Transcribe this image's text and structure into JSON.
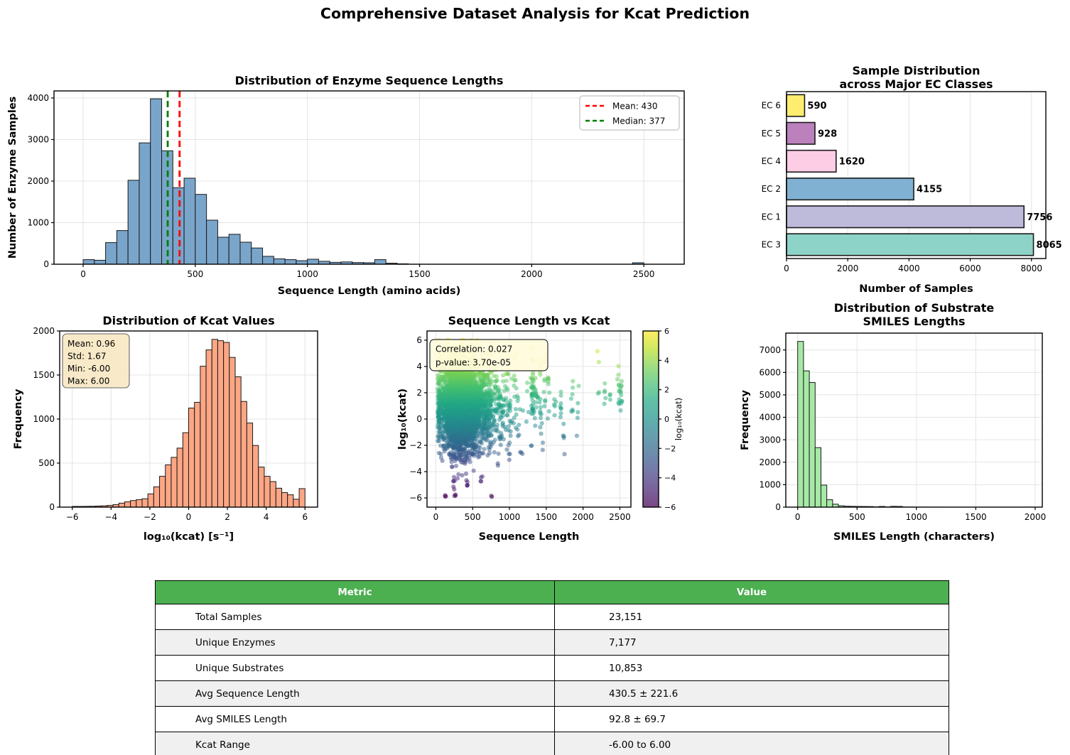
{
  "figure_title": "Comprehensive Dataset Analysis for Kcat Prediction",
  "chart_data": [
    {
      "id": "seq_length_hist",
      "type": "bar",
      "title": "Distribution of Enzyme Sequence Lengths",
      "xlabel": "Sequence Length (amino acids)",
      "ylabel": "Number of Enzyme Samples",
      "bar_color": "#7aa5cb",
      "bin_start": 0,
      "bin_width": 50,
      "values": [
        110,
        95,
        520,
        810,
        2020,
        2920,
        3980,
        2730,
        1840,
        2070,
        1680,
        1060,
        650,
        720,
        530,
        390,
        190,
        130,
        110,
        85,
        120,
        70,
        45,
        55,
        40,
        35,
        110,
        25,
        10,
        0,
        0,
        0,
        0,
        0,
        0,
        0,
        0,
        0,
        0,
        0,
        0,
        0,
        0,
        0,
        0,
        0,
        0,
        0,
        0,
        35
      ],
      "xlim": [
        -130,
        2680
      ],
      "ylim": [
        0,
        4170
      ],
      "xticks": [
        0,
        500,
        1000,
        1500,
        2000,
        2500
      ],
      "yticks": [
        0,
        1000,
        2000,
        3000,
        4000
      ],
      "grid": true,
      "mean_line": {
        "x": 430,
        "color": "#ff0000",
        "label": "Mean: 430"
      },
      "median_line": {
        "x": 377,
        "color": "#008000",
        "label": "Median: 377"
      },
      "legend_position": "top-right"
    },
    {
      "id": "ec_classes",
      "type": "barh",
      "title_lines": [
        "Sample Distribution",
        "across Major EC Classes"
      ],
      "xlabel": "Number of Samples",
      "categories": [
        "EC 6",
        "EC 5",
        "EC 4",
        "EC 2",
        "EC 1",
        "EC 3"
      ],
      "values": [
        590,
        928,
        1620,
        4155,
        7756,
        8065
      ],
      "colors": [
        "#ffed6f",
        "#bc80bd",
        "#fccde5",
        "#80b1d3",
        "#bebada",
        "#8dd3c7"
      ],
      "xlim": [
        0,
        8470
      ],
      "xticks": [
        0,
        2000,
        4000,
        6000,
        8000
      ],
      "grid": true
    },
    {
      "id": "kcat_hist",
      "type": "bar",
      "title": "Distribution of Kcat Values",
      "xlabel": "log₁₀(kcat) [s⁻¹]",
      "ylabel": "Frequency",
      "bar_color": "#fca684",
      "bin_start": -6,
      "bin_width": 0.3,
      "values": [
        8,
        8,
        9,
        10,
        12,
        15,
        20,
        28,
        45,
        60,
        75,
        85,
        95,
        150,
        230,
        350,
        480,
        565,
        670,
        845,
        1125,
        1190,
        1600,
        1785,
        1905,
        1890,
        1870,
        1700,
        1480,
        1200,
        955,
        700,
        455,
        350,
        290,
        215,
        165,
        140,
        90,
        210
      ],
      "xlim": [
        -6.65,
        6.65
      ],
      "ylim": [
        0,
        2000
      ],
      "xticks": [
        -6,
        -4,
        -2,
        0,
        2,
        4,
        6
      ],
      "yticks": [
        0,
        500,
        1000,
        1500,
        2000
      ],
      "grid": true,
      "stats_box": {
        "lines": [
          "Mean: 0.96",
          "Std: 1.67",
          "Min: -6.00",
          "Max: 6.00"
        ],
        "bg": "#f7e8c3"
      }
    },
    {
      "id": "scatter_seq_vs_kcat",
      "type": "scatter",
      "title": "Sequence Length vs Kcat",
      "xlabel": "Sequence Length",
      "ylabel": "log₁₀(kcat)",
      "annotation": {
        "lines": [
          "Correlation: 0.027",
          "p-value: 3.70e-05"
        ],
        "bg": "#fffbdc"
      },
      "xlim": [
        -120,
        2650
      ],
      "ylim": [
        -6.7,
        6.7
      ],
      "xticks": [
        0,
        500,
        1000,
        1500,
        2000,
        2500
      ],
      "yticks": [
        -6,
        -4,
        -2,
        0,
        2,
        4,
        6
      ],
      "grid": true,
      "colormap": "viridis",
      "point_alpha": 0.5,
      "colorbar": {
        "label": "log₁₀(kcat)",
        "ticks": [
          6,
          4,
          2,
          0,
          -2,
          -4,
          -6
        ],
        "vmin": -6,
        "vmax": 6
      },
      "representation": {
        "note": "dense cloud of ~23k points, color = log10(kcat), procedurally approximated",
        "seed": 42,
        "n_core": 3800,
        "x_offset": 55,
        "x_log_mu": 5.8,
        "x_log_sigma": 0.48,
        "x_low_frac": 0.12,
        "y_mean": 0.96,
        "y_std": 1.67,
        "y_clip": [
          -6,
          6
        ],
        "clusters": [
          [
            1310,
            30,
            0.3,
            3.6
          ],
          [
            1320,
            6,
            4.2,
            6.0
          ],
          [
            1360,
            12,
            0.8,
            3.2
          ],
          [
            1420,
            16,
            -1.2,
            5.0
          ],
          [
            1480,
            10,
            0.8,
            5.2
          ],
          [
            1530,
            8,
            -0.2,
            4.6
          ],
          [
            1620,
            5,
            0.2,
            2.2
          ],
          [
            1705,
            7,
            0.4,
            2.6
          ],
          [
            1735,
            5,
            -2.8,
            2.0
          ],
          [
            1855,
            7,
            0.5,
            3.0
          ],
          [
            1925,
            5,
            -1.6,
            2.6
          ],
          [
            2210,
            4,
            0.8,
            5.6
          ],
          [
            2300,
            5,
            0.9,
            4.6
          ],
          [
            2360,
            3,
            0.9,
            2.1
          ],
          [
            2480,
            9,
            0.4,
            4.2
          ],
          [
            2515,
            11,
            0.5,
            3.2
          ],
          [
            130,
            3,
            -6.05,
            -5.7
          ],
          [
            260,
            3,
            -6.0,
            -5.5
          ],
          [
            750,
            2,
            -6.05,
            -5.8
          ],
          [
            240,
            6,
            -5.4,
            -4.4
          ],
          [
            430,
            5,
            -5.3,
            -4.4
          ],
          [
            620,
            4,
            -5.1,
            -4.3
          ],
          [
            850,
            2,
            -3.8,
            -3.2
          ],
          [
            1000,
            3,
            -3.3,
            -2.6
          ],
          [
            1150,
            3,
            -2.7,
            -2.2
          ],
          [
            1300,
            2,
            -2.5,
            -2.0
          ],
          [
            1450,
            2,
            -2.4,
            -1.8
          ],
          [
            160,
            5,
            5.6,
            6.05
          ],
          [
            350,
            6,
            5.6,
            6.05
          ],
          [
            560,
            4,
            5.6,
            6.05
          ]
        ]
      }
    },
    {
      "id": "smiles_hist",
      "type": "bar",
      "title_lines": [
        "Distribution of Substrate",
        "SMILES Lengths"
      ],
      "xlabel": "SMILES Length (characters)",
      "ylabel": "Frequency",
      "bar_color": "#a6e9a6",
      "bin_start": 0,
      "bin_width": 49,
      "values": [
        7380,
        6070,
        5550,
        2650,
        980,
        330,
        130,
        60,
        40,
        35,
        30,
        28,
        25,
        12,
        30,
        10,
        35,
        30,
        5,
        3,
        2,
        2,
        1,
        1,
        1,
        0,
        0,
        0,
        0,
        0,
        0,
        0,
        0,
        0,
        0,
        0,
        0,
        0,
        0,
        2
      ],
      "xlim": [
        -100,
        2060
      ],
      "ylim": [
        0,
        7750
      ],
      "xticks": [
        0,
        500,
        1000,
        1500,
        2000
      ],
      "yticks": [
        0,
        1000,
        2000,
        3000,
        4000,
        5000,
        6000,
        7000
      ],
      "grid": true
    }
  ],
  "table": {
    "headers": [
      "Metric",
      "Value"
    ],
    "rows": [
      [
        "Total Samples",
        "23,151"
      ],
      [
        "Unique Enzymes",
        "7,177"
      ],
      [
        "Unique Substrates",
        "10,853"
      ],
      [
        "Avg Sequence Length",
        "430.5 ± 221.6"
      ],
      [
        "Avg SMILES Length",
        "92.8 ± 69.7"
      ],
      [
        "Kcat Range",
        "-6.00 to 6.00"
      ]
    ],
    "header_bg": "#4caf50",
    "header_fg": "#ffffff",
    "row_alt_bg": "#f0f0f0",
    "row_bg": "#ffffff"
  },
  "colors": {
    "viridis_stops": [
      "#440154",
      "#482475",
      "#414487",
      "#355f8d",
      "#2a788e",
      "#21918c",
      "#22a884",
      "#44bf70",
      "#7ad151",
      "#bddf26",
      "#fde725"
    ]
  }
}
